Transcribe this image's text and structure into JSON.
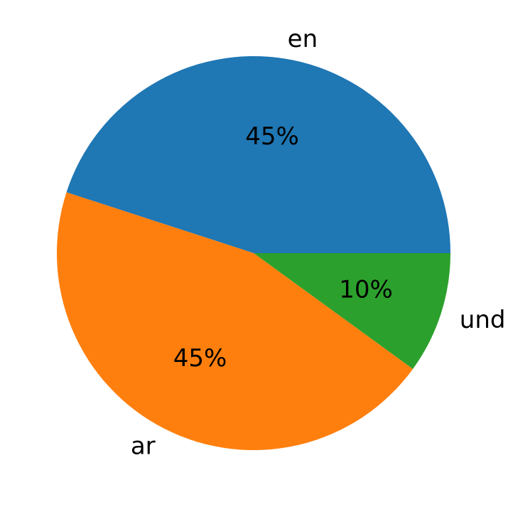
{
  "chart_data": {
    "type": "pie",
    "title": "",
    "slices": [
      {
        "label": "en",
        "value": 45,
        "pct_label": "45%",
        "color": "#1f77b4"
      },
      {
        "label": "ar",
        "value": 45,
        "pct_label": "45%",
        "color": "#ff7f0e"
      },
      {
        "label": "und",
        "value": 10,
        "pct_label": "10%",
        "color": "#2ca02c"
      }
    ],
    "start_angle_deg": 0,
    "direction": "counterclockwise",
    "legend": "none"
  }
}
